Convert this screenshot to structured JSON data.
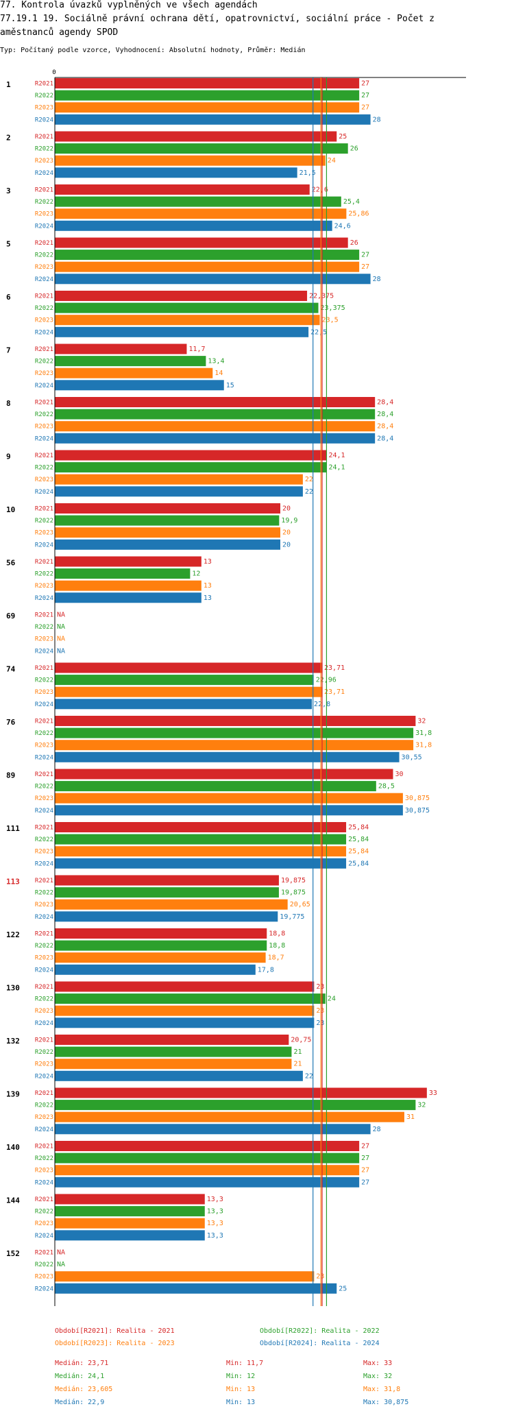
{
  "header": {
    "title_line1": "77. Kontrola úvazků vyplněných ve všech agendách",
    "title_line2": "77.19.1 19. Sociálně právní ochrana dětí, opatrovnictví, sociální práce - Počet z",
    "title_line3": "aměstnanců agendy SPOD",
    "subtitle": "Typ: Počítaný podle vzorce, Vyhodnocení: Absolutní hodnoty, Průměr: Medián"
  },
  "colors": {
    "R2021": "#d62728",
    "R2022": "#2ca02c",
    "R2023": "#ff7f0e",
    "R2024": "#1f77b4",
    "highlight_label": "#d62728"
  },
  "chart_data": {
    "type": "bar",
    "orientation": "horizontal",
    "axis_zero_label": "0",
    "xlim": [
      0,
      34.5
    ],
    "series_names": [
      "R2021",
      "R2022",
      "R2023",
      "R2024"
    ],
    "highlighted_category": "113",
    "categories": [
      {
        "label": "1",
        "values": [
          27,
          27,
          27,
          28
        ],
        "labels": [
          "27",
          "27",
          "27",
          "28"
        ]
      },
      {
        "label": "2",
        "values": [
          25,
          26,
          24,
          21.5
        ],
        "labels": [
          "25",
          "26",
          "24",
          "21,5"
        ]
      },
      {
        "label": "3",
        "values": [
          22.6,
          25.4,
          25.86,
          24.6
        ],
        "labels": [
          "22,6",
          "25,4",
          "25,86",
          "24,6"
        ]
      },
      {
        "label": "5",
        "values": [
          26,
          27,
          27,
          28
        ],
        "labels": [
          "26",
          "27",
          "27",
          "28"
        ]
      },
      {
        "label": "6",
        "values": [
          22.375,
          23.375,
          23.5,
          22.5
        ],
        "labels": [
          "22,375",
          "23,375",
          "23,5",
          "22,5"
        ]
      },
      {
        "label": "7",
        "values": [
          11.7,
          13.4,
          14,
          15
        ],
        "labels": [
          "11,7",
          "13,4",
          "14",
          "15"
        ]
      },
      {
        "label": "8",
        "values": [
          28.4,
          28.4,
          28.4,
          28.4
        ],
        "labels": [
          "28,4",
          "28,4",
          "28,4",
          "28,4"
        ]
      },
      {
        "label": "9",
        "values": [
          24.1,
          24.1,
          22,
          22
        ],
        "labels": [
          "24,1",
          "24,1",
          "22",
          "22"
        ]
      },
      {
        "label": "10",
        "values": [
          20,
          19.9,
          20,
          20
        ],
        "labels": [
          "20",
          "19,9",
          "20",
          "20"
        ]
      },
      {
        "label": "56",
        "values": [
          13,
          12,
          13,
          13
        ],
        "labels": [
          "13",
          "12",
          "13",
          "13"
        ]
      },
      {
        "label": "69",
        "values": [
          null,
          null,
          null,
          null
        ],
        "labels": [
          "NA",
          "NA",
          "NA",
          "NA"
        ]
      },
      {
        "label": "74",
        "values": [
          23.71,
          22.96,
          23.71,
          22.8
        ],
        "labels": [
          "23,71",
          "22,96",
          "23,71",
          "22,8"
        ]
      },
      {
        "label": "76",
        "values": [
          32,
          31.8,
          31.8,
          30.55
        ],
        "labels": [
          "32",
          "31,8",
          "31,8",
          "30,55"
        ]
      },
      {
        "label": "89",
        "values": [
          30,
          28.5,
          30.875,
          30.875
        ],
        "labels": [
          "30",
          "28,5",
          "30,875",
          "30,875"
        ]
      },
      {
        "label": "111",
        "values": [
          25.84,
          25.84,
          25.84,
          25.84
        ],
        "labels": [
          "25,84",
          "25,84",
          "25,84",
          "25,84"
        ]
      },
      {
        "label": "113",
        "values": [
          19.875,
          19.875,
          20.65,
          19.775
        ],
        "labels": [
          "19,875",
          "19,875",
          "20,65",
          "19,775"
        ]
      },
      {
        "label": "122",
        "values": [
          18.8,
          18.8,
          18.7,
          17.8
        ],
        "labels": [
          "18,8",
          "18,8",
          "18,7",
          "17,8"
        ]
      },
      {
        "label": "130",
        "values": [
          23,
          24,
          23,
          23
        ],
        "labels": [
          "23",
          "24",
          "23",
          "23"
        ]
      },
      {
        "label": "132",
        "values": [
          20.75,
          21,
          21,
          22
        ],
        "labels": [
          "20,75",
          "21",
          "21",
          "22"
        ]
      },
      {
        "label": "139",
        "values": [
          33,
          32,
          31,
          28
        ],
        "labels": [
          "33",
          "32",
          "31",
          "28"
        ]
      },
      {
        "label": "140",
        "values": [
          27,
          27,
          27,
          27
        ],
        "labels": [
          "27",
          "27",
          "27",
          "27"
        ]
      },
      {
        "label": "144",
        "values": [
          13.3,
          13.3,
          13.3,
          13.3
        ],
        "labels": [
          "13,3",
          "13,3",
          "13,3",
          "13,3"
        ]
      },
      {
        "label": "152",
        "values": [
          null,
          null,
          23,
          25
        ],
        "labels": [
          "NA",
          "NA",
          "23",
          "25"
        ]
      }
    ],
    "median_lines": [
      {
        "series": "R2021",
        "value": 23.71
      },
      {
        "series": "R2022",
        "value": 24.1
      },
      {
        "series": "R2023",
        "value": 23.605
      },
      {
        "series": "R2024",
        "value": 22.9
      }
    ],
    "legend": [
      {
        "series": "R2021",
        "text": "Období[R2021]: Realita - 2021"
      },
      {
        "series": "R2022",
        "text": "Období[R2022]: Realita - 2022"
      },
      {
        "series": "R2023",
        "text": "Období[R2023]: Realita - 2023"
      },
      {
        "series": "R2024",
        "text": "Období[R2024]: Realita - 2024"
      }
    ],
    "stats": [
      {
        "series": "R2021",
        "median": "Medián: 23,71",
        "min": "Min: 11,7",
        "max": "Max: 33"
      },
      {
        "series": "R2022",
        "median": "Medián: 24,1",
        "min": "Min: 12",
        "max": "Max: 32"
      },
      {
        "series": "R2023",
        "median": "Medián: 23,605",
        "min": "Min: 13",
        "max": "Max: 31,8"
      },
      {
        "series": "R2024",
        "median": "Medián: 22,9",
        "min": "Min: 13",
        "max": "Max: 30,875"
      }
    ]
  }
}
